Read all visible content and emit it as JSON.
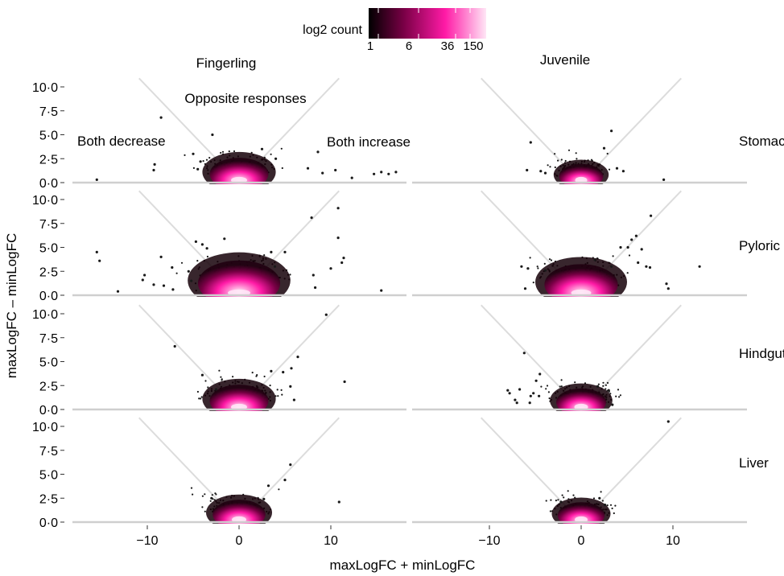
{
  "colors": {
    "diag": "#dcdcdc",
    "baseline": "#cfcfcf",
    "point": "#1a1a1a",
    "grad_low": "#000000",
    "grad_mid": "#7a0046",
    "grad_high": "#ff1aa6",
    "grad_top": "#ffe6f6"
  },
  "legend": {
    "title": "log2 count",
    "ticks": [
      "1",
      "6",
      "36",
      "150"
    ]
  },
  "chart_data": {
    "type": "scatter",
    "xlabel": "maxLogFC + minLogFC",
    "ylabel": "maxLogFC – minLogFC",
    "columns": [
      "Fingerling",
      "Juvenile"
    ],
    "rows": [
      "Stomach",
      "Pyloric",
      "Hindgut",
      "Liver"
    ],
    "xlim": [
      -18,
      18
    ],
    "ylim": [
      0,
      11
    ],
    "xticks": [
      -10,
      0,
      10
    ],
    "xtick_labels": [
      "−10",
      "0",
      "10"
    ],
    "yticks": [
      0,
      2.5,
      5,
      7.5,
      10
    ],
    "ytick_labels": [
      "0·0",
      "2·5",
      "5·0",
      "7·5",
      "10·0"
    ],
    "region_labels": [
      "Both decrease",
      "Opposite responses",
      "Both increase"
    ],
    "grid": false,
    "panels": [
      {
        "column": "Fingerling",
        "row": "Stomach",
        "spread": 2.0,
        "outliers": [
          [
            -8.5,
            6.8
          ],
          [
            -2.9,
            5.0
          ],
          [
            -9.2,
            1.9
          ],
          [
            -9.3,
            1.3
          ],
          [
            -15.5,
            0.3
          ],
          [
            -4.5,
            1.4
          ],
          [
            -4.2,
            2.2
          ],
          [
            -5.0,
            3.0
          ],
          [
            2.5,
            3.5
          ],
          [
            4.0,
            2.5
          ],
          [
            7.5,
            1.5
          ],
          [
            8.6,
            3.2
          ],
          [
            9.1,
            1.0
          ],
          [
            10.5,
            1.3
          ],
          [
            14.7,
            0.9
          ],
          [
            15.5,
            1.1
          ],
          [
            16.3,
            0.9
          ],
          [
            17.1,
            1.1
          ],
          [
            12.3,
            0.5
          ]
        ]
      },
      {
        "column": "Juvenile",
        "row": "Stomach",
        "spread": 1.5,
        "outliers": [
          [
            -5.5,
            4.2
          ],
          [
            -5.9,
            1.3
          ],
          [
            -4.4,
            1.2
          ],
          [
            -3.9,
            1.0
          ],
          [
            3.3,
            5.4
          ],
          [
            2.5,
            3.6
          ],
          [
            3.9,
            1.5
          ],
          [
            4.6,
            1.2
          ],
          [
            9.0,
            0.3
          ]
        ]
      },
      {
        "column": "Fingerling",
        "row": "Pyloric",
        "spread": 2.8,
        "outliers": [
          [
            -15.5,
            4.5
          ],
          [
            -15.2,
            3.6
          ],
          [
            -13.2,
            0.4
          ],
          [
            -10.5,
            1.6
          ],
          [
            -10.3,
            2.1
          ],
          [
            -9.3,
            1.1
          ],
          [
            -8.5,
            4.0
          ],
          [
            -8.2,
            1.0
          ],
          [
            -7.3,
            2.9
          ],
          [
            -7.2,
            0.6
          ],
          [
            -4.7,
            5.6
          ],
          [
            -4.0,
            5.3
          ],
          [
            -3.5,
            4.9
          ],
          [
            -1.6,
            5.9
          ],
          [
            -5.5,
            2.5
          ],
          [
            -5.2,
            1.5
          ],
          [
            3.5,
            4.5
          ],
          [
            5.0,
            4.5
          ],
          [
            3.9,
            3.0
          ],
          [
            7.9,
            8.1
          ],
          [
            10.8,
            9.1
          ],
          [
            10.8,
            6.0
          ],
          [
            11.2,
            3.4
          ],
          [
            11.4,
            3.9
          ],
          [
            8.3,
            0.8
          ],
          [
            8.1,
            2.1
          ],
          [
            10.0,
            2.8
          ],
          [
            15.5,
            0.5
          ]
        ]
      },
      {
        "column": "Juvenile",
        "row": "Pyloric",
        "spread": 2.5,
        "outliers": [
          [
            -6.5,
            3.0
          ],
          [
            -6.1,
            0.7
          ],
          [
            -5.8,
            2.8
          ],
          [
            -3.9,
            2.6
          ],
          [
            1.5,
            3.7
          ],
          [
            3.3,
            3.0
          ],
          [
            4.3,
            5.0
          ],
          [
            5.1,
            5.0
          ],
          [
            5.5,
            5.8
          ],
          [
            6.0,
            6.2
          ],
          [
            6.2,
            3.4
          ],
          [
            6.6,
            4.8
          ],
          [
            7.1,
            3.0
          ],
          [
            7.5,
            2.9
          ],
          [
            7.6,
            8.3
          ],
          [
            9.3,
            1.2
          ],
          [
            9.5,
            0.7
          ],
          [
            12.9,
            3.0
          ]
        ]
      },
      {
        "column": "Fingerling",
        "row": "Hindgut",
        "spread": 2.0,
        "outliers": [
          [
            -7.0,
            6.6
          ],
          [
            -4.0,
            3.6
          ],
          [
            -2.5,
            2.1
          ],
          [
            3.5,
            4.0
          ],
          [
            4.8,
            3.9
          ],
          [
            5.7,
            4.3
          ],
          [
            5.6,
            2.4
          ],
          [
            6.4,
            5.5
          ],
          [
            9.5,
            9.9
          ],
          [
            11.5,
            2.9
          ],
          [
            6.0,
            1.0
          ]
        ]
      },
      {
        "column": "Juvenile",
        "row": "Hindgut",
        "spread": 1.7,
        "outliers": [
          [
            -8.0,
            2.0
          ],
          [
            -7.8,
            1.7
          ],
          [
            -7.2,
            1.0
          ],
          [
            -7.0,
            0.7
          ],
          [
            -6.7,
            2.1
          ],
          [
            -5.6,
            0.7
          ],
          [
            -5.5,
            1.4
          ],
          [
            -5.2,
            1.7
          ],
          [
            -4.9,
            3.0
          ],
          [
            -4.6,
            1.4
          ],
          [
            -6.2,
            5.9
          ],
          [
            -4.5,
            3.7
          ],
          [
            1.8,
            2.4
          ],
          [
            3.0,
            2.0
          ],
          [
            3.4,
            0.5
          ]
        ]
      },
      {
        "column": "Fingerling",
        "row": "Liver",
        "spread": 1.8,
        "outliers": [
          [
            3.2,
            3.8
          ],
          [
            5.6,
            6.0
          ],
          [
            5.0,
            4.4
          ],
          [
            10.9,
            2.1
          ],
          [
            -3.0,
            2.5
          ],
          [
            2.7,
            2.4
          ]
        ]
      },
      {
        "column": "Juvenile",
        "row": "Liver",
        "spread": 1.6,
        "outliers": [
          [
            9.5,
            10.5
          ],
          [
            2.0,
            2.5
          ],
          [
            -2.2,
            2.1
          ],
          [
            2.6,
            1.8
          ]
        ]
      }
    ]
  }
}
